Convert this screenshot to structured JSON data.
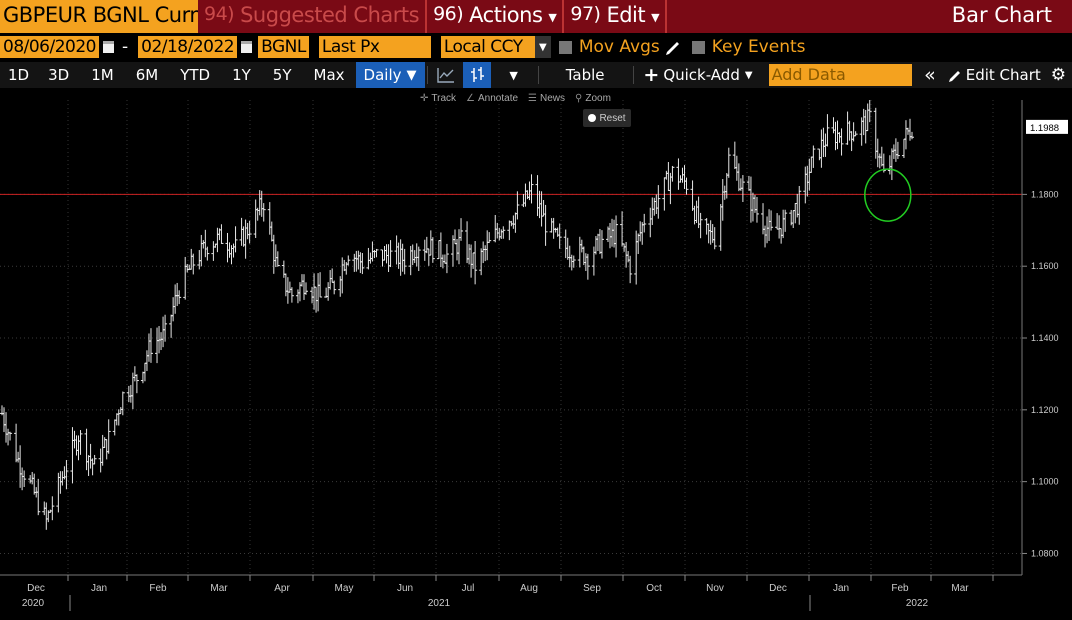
{
  "titlebar": {
    "security": "GBPEUR BGNL Curnc",
    "suggested": {
      "num": "94)",
      "label": "Suggested Charts"
    },
    "actions": {
      "num": "96)",
      "label": "Actions"
    },
    "edit": {
      "num": "97)",
      "label": "Edit"
    },
    "chart_type": "Bar Chart"
  },
  "params": {
    "start_date": "08/06/2020",
    "end_date": "02/18/2022",
    "source": "BGNL",
    "field": "Last Px",
    "currency": "Local CCY",
    "mov_avgs": "Mov Avgs",
    "key_events": "Key Events"
  },
  "toolbar": {
    "ranges": [
      "1D",
      "3D",
      "1M",
      "6M",
      "YTD",
      "1Y",
      "5Y",
      "Max"
    ],
    "frequency": "Daily",
    "table": "Table",
    "quick_add": "Quick-Add",
    "add_data_placeholder": "Add Data",
    "edit_chart": "Edit Chart"
  },
  "chart_tools": {
    "track": "Track",
    "annotate": "Annotate",
    "news": "News",
    "zoom": "Zoom",
    "reset": "Reset"
  },
  "colors": {
    "title_bg": "#7a0a15",
    "amber": "#f4a21f",
    "active_blue": "#1b5fb8",
    "reference_line": "#cc2222",
    "highlight_circle": "#22cc22"
  },
  "chart_data": {
    "type": "bar",
    "subtype": "OHLC",
    "y_ticks": [
      "1.0800",
      "1.1000",
      "1.1200",
      "1.1400",
      "1.1600",
      "1.1800"
    ],
    "ylim": [
      1.074,
      1.2035
    ],
    "last_price": "1.1988",
    "reference_line": 1.18,
    "x_months": [
      "Dec",
      "Jan",
      "Feb",
      "Mar",
      "Apr",
      "May",
      "Jun",
      "Jul",
      "Aug",
      "Sep",
      "Oct",
      "Nov",
      "Dec",
      "Jan",
      "Feb",
      "Mar"
    ],
    "x_years": [
      "2020",
      "2021",
      "2022"
    ],
    "series": [
      {
        "date": "2020-11-23",
        "close": 1.119
      },
      {
        "date": "2020-12-01",
        "close": 1.106
      },
      {
        "date": "2020-12-08",
        "close": 1.098
      },
      {
        "date": "2020-12-15",
        "close": 1.089
      },
      {
        "date": "2020-12-22",
        "close": 1.1
      },
      {
        "date": "2020-12-31",
        "close": 1.113
      },
      {
        "date": "2021-01-08",
        "close": 1.104
      },
      {
        "date": "2021-01-15",
        "close": 1.112
      },
      {
        "date": "2021-01-22",
        "close": 1.124
      },
      {
        "date": "2021-01-29",
        "close": 1.129
      },
      {
        "date": "2021-02-05",
        "close": 1.138
      },
      {
        "date": "2021-02-12",
        "close": 1.141
      },
      {
        "date": "2021-02-19",
        "close": 1.154
      },
      {
        "date": "2021-02-26",
        "close": 1.161
      },
      {
        "date": "2021-03-05",
        "close": 1.166
      },
      {
        "date": "2021-03-12",
        "close": 1.168
      },
      {
        "date": "2021-03-19",
        "close": 1.165
      },
      {
        "date": "2021-03-26",
        "close": 1.171
      },
      {
        "date": "2021-04-02",
        "close": 1.178
      },
      {
        "date": "2021-04-09",
        "close": 1.158
      },
      {
        "date": "2021-04-16",
        "close": 1.152
      },
      {
        "date": "2021-04-23",
        "close": 1.156
      },
      {
        "date": "2021-04-30",
        "close": 1.151
      },
      {
        "date": "2021-05-07",
        "close": 1.155
      },
      {
        "date": "2021-05-14",
        "close": 1.164
      },
      {
        "date": "2021-05-21",
        "close": 1.161
      },
      {
        "date": "2021-05-28",
        "close": 1.163
      },
      {
        "date": "2021-06-04",
        "close": 1.163
      },
      {
        "date": "2021-06-11",
        "close": 1.162
      },
      {
        "date": "2021-06-18",
        "close": 1.166
      },
      {
        "date": "2021-06-25",
        "close": 1.165
      },
      {
        "date": "2021-07-02",
        "close": 1.163
      },
      {
        "date": "2021-07-09",
        "close": 1.167
      },
      {
        "date": "2021-07-16",
        "close": 1.16
      },
      {
        "date": "2021-07-23",
        "close": 1.166
      },
      {
        "date": "2021-07-30",
        "close": 1.172
      },
      {
        "date": "2021-08-06",
        "close": 1.175
      },
      {
        "date": "2021-08-13",
        "close": 1.181
      },
      {
        "date": "2021-08-20",
        "close": 1.172
      },
      {
        "date": "2021-08-27",
        "close": 1.166
      },
      {
        "date": "2021-09-03",
        "close": 1.164
      },
      {
        "date": "2021-09-10",
        "close": 1.163
      },
      {
        "date": "2021-09-17",
        "close": 1.167
      },
      {
        "date": "2021-09-24",
        "close": 1.169
      },
      {
        "date": "2021-10-01",
        "close": 1.16
      },
      {
        "date": "2021-10-08",
        "close": 1.173
      },
      {
        "date": "2021-10-15",
        "close": 1.179
      },
      {
        "date": "2021-10-22",
        "close": 1.186
      },
      {
        "date": "2021-10-29",
        "close": 1.183
      },
      {
        "date": "2021-11-05",
        "close": 1.17
      },
      {
        "date": "2021-11-12",
        "close": 1.168
      },
      {
        "date": "2021-11-19",
        "close": 1.19
      },
      {
        "date": "2021-11-26",
        "close": 1.182
      },
      {
        "date": "2021-12-03",
        "close": 1.175
      },
      {
        "date": "2021-12-10",
        "close": 1.169
      },
      {
        "date": "2021-12-17",
        "close": 1.172
      },
      {
        "date": "2021-12-24",
        "close": 1.178
      },
      {
        "date": "2021-12-31",
        "close": 1.19
      },
      {
        "date": "2022-01-07",
        "close": 1.196
      },
      {
        "date": "2022-01-14",
        "close": 1.197
      },
      {
        "date": "2022-01-21",
        "close": 1.198
      },
      {
        "date": "2022-01-28",
        "close": 1.201
      },
      {
        "date": "2022-02-04",
        "close": 1.185
      },
      {
        "date": "2022-02-11",
        "close": 1.193
      },
      {
        "date": "2022-02-18",
        "close": 1.1988
      }
    ]
  }
}
